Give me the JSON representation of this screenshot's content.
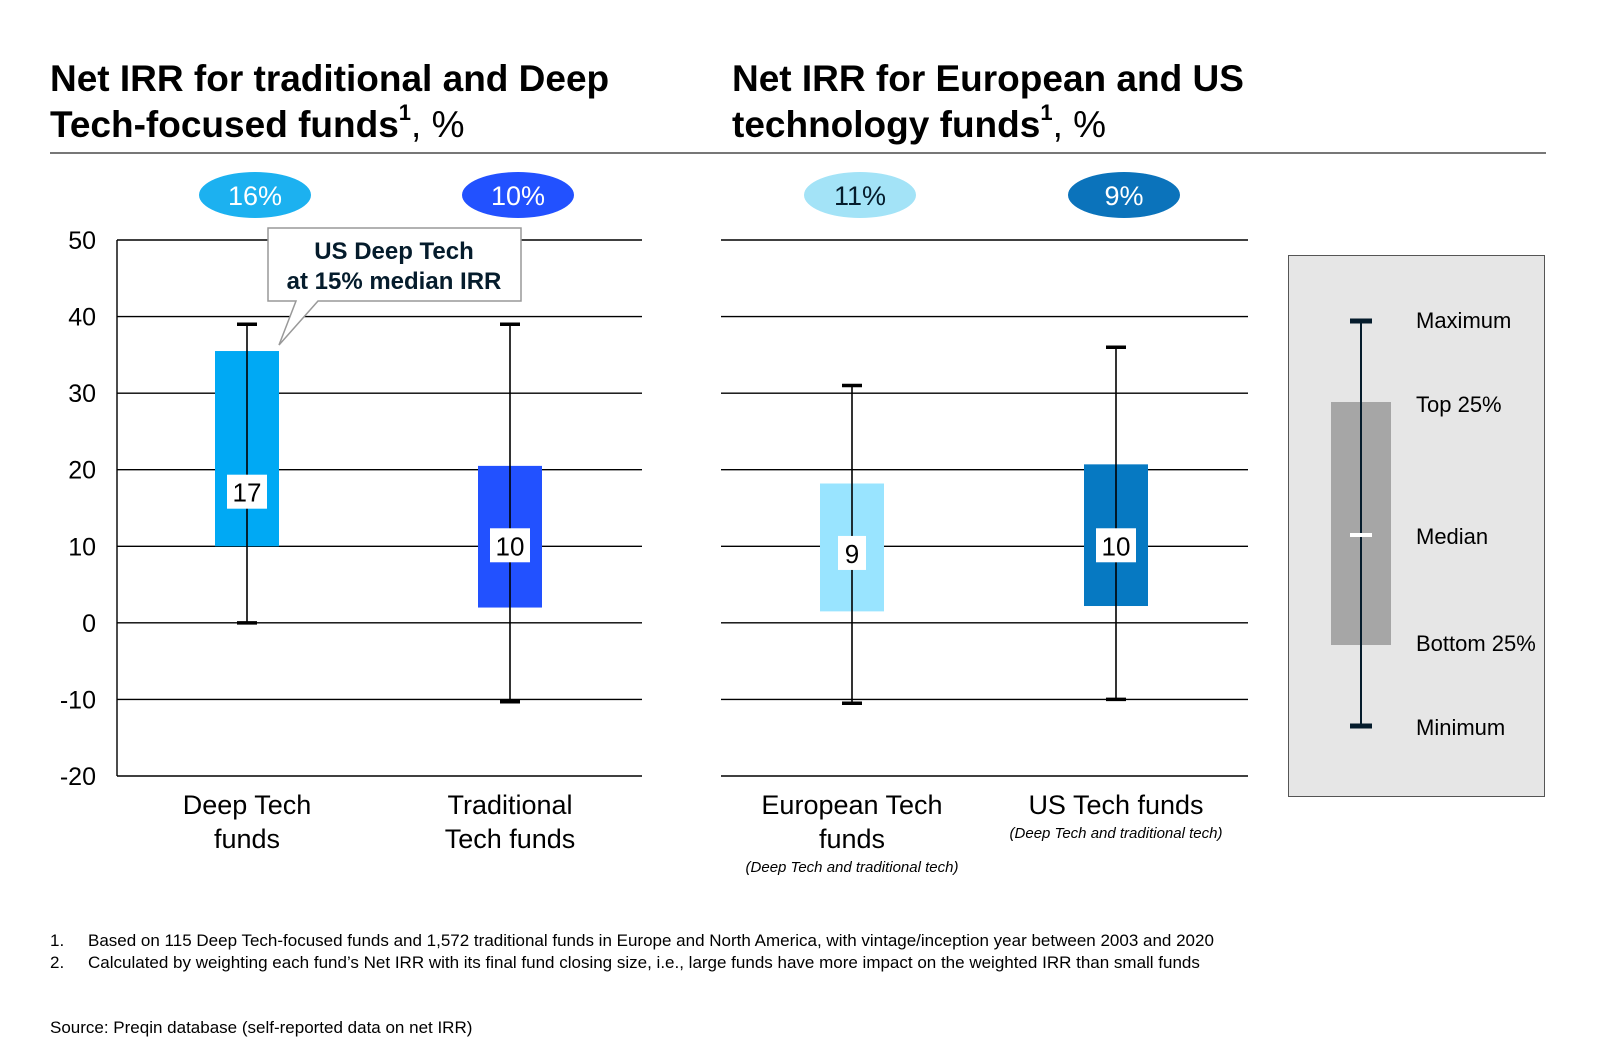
{
  "titles": {
    "left": {
      "text": "Net IRR for traditional and Deep Tech-focused funds",
      "sup": "1",
      "unit": ", %"
    },
    "right": {
      "text": "Net IRR for European and US technology funds",
      "sup": "1",
      "unit": ", %"
    }
  },
  "chart_data": [
    {
      "type": "boxplot",
      "title": "Net IRR for traditional and Deep Tech-focused funds1, %",
      "ylim": [
        -20,
        50
      ],
      "yticks": [
        "50",
        "40",
        "30",
        "20",
        "10",
        "0",
        "-10",
        "-20"
      ],
      "grid": true,
      "series": [
        {
          "label_lines": [
            "Deep Tech",
            "funds"
          ],
          "sublabel": "",
          "max": 39,
          "q3": 35.5,
          "median": 17,
          "q1": 10,
          "min": 0,
          "median_label": "17",
          "weighted_badge": "16%",
          "color": "#00a9f4",
          "badge_color": "#1cb1f0",
          "badge_text_color": "#ffffff"
        },
        {
          "label_lines": [
            "Traditional",
            "Tech funds"
          ],
          "sublabel": "",
          "max": 39,
          "q3": 20.5,
          "median": 10,
          "q1": 2,
          "min": -10.3,
          "median_label": "10",
          "weighted_badge": "10%",
          "color": "#2251ff",
          "badge_color": "#2251ff",
          "badge_text_color": "#ffffff"
        }
      ],
      "callout": "US Deep Tech at 15% median IRR"
    },
    {
      "type": "boxplot",
      "title": "Net IRR for European and US technology funds1, %",
      "ylim": [
        -20,
        50
      ],
      "grid": true,
      "series": [
        {
          "label_lines": [
            "European Tech",
            "funds"
          ],
          "sublabel": "(Deep Tech and traditional tech)",
          "max": 31,
          "q3": 18.2,
          "median": 9,
          "q1": 1.5,
          "min": -10.5,
          "median_label": "9",
          "weighted_badge": "11%",
          "color": "#99e4ff",
          "badge_color": "#a3e3f7",
          "badge_text_color": "#051c2c"
        },
        {
          "label_lines": [
            "US Tech funds"
          ],
          "sublabel": "(Deep Tech and traditional tech)",
          "max": 36,
          "q3": 20.7,
          "median": 10,
          "q1": 2.2,
          "min": -10,
          "median_label": "10",
          "weighted_badge": "9%",
          "color": "#0679c2",
          "badge_color": "#0b73bb",
          "badge_text_color": "#ffffff"
        }
      ]
    }
  ],
  "legend": {
    "maximum": "Maximum",
    "top25": "Top 25%",
    "median": "Median",
    "bottom25": "Bottom 25%",
    "minimum": "Minimum"
  },
  "footnotes": [
    {
      "num": "1.",
      "text": "Based on 115 Deep Tech-focused funds and 1,572 traditional funds in Europe and North America, with vintage/inception year between 2003 and 2020"
    },
    {
      "num": "2.",
      "text": "Calculated by weighting each fund’s Net IRR with its final fund closing size, i.e., large funds have more impact on the weighted IRR than small funds"
    }
  ],
  "source": "Source: Preqin database (self-reported data on net IRR)"
}
